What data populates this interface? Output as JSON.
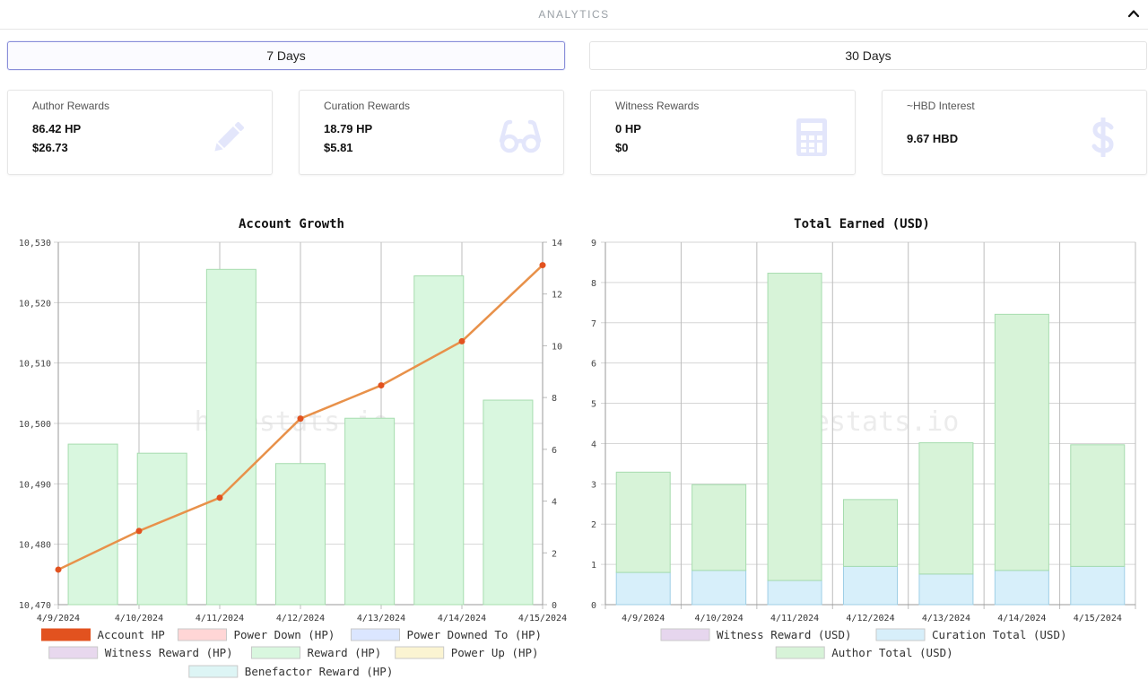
{
  "header": {
    "title": "ANALYTICS"
  },
  "periods": [
    {
      "label": "7 Days",
      "active": true
    },
    {
      "label": "30 Days",
      "active": false
    }
  ],
  "cards": [
    {
      "label": "Author Rewards",
      "value1": "86.42 HP",
      "value2": "$26.73",
      "icon": "pencil-icon"
    },
    {
      "label": "Curation Rewards",
      "value1": "18.79 HP",
      "value2": "$5.81",
      "icon": "glasses-icon"
    },
    {
      "label": "Witness Rewards",
      "value1": "0 HP",
      "value2": "$0",
      "icon": "calculator-icon"
    },
    {
      "label": "~HBD Interest",
      "value1": "9.67 HBD",
      "value2": "",
      "icon": "dollar-icon"
    }
  ],
  "colors": {
    "accent": "#8a8fd9",
    "icon": "#e3e6fb",
    "line": "#e8914a",
    "point": "#e2521f"
  },
  "chart_data": [
    {
      "type": "bar",
      "title": "Account Growth",
      "categories": [
        "4/9/2024",
        "4/10/2024",
        "4/11/2024",
        "4/12/2024",
        "4/13/2024",
        "4/14/2024",
        "4/15/2024"
      ],
      "y_left": {
        "min": 10470,
        "max": 10530,
        "ticks": [
          "10,470",
          "10,480",
          "10,490",
          "10,500",
          "10,510",
          "10,520",
          "10,530"
        ]
      },
      "y_right": {
        "min": 0,
        "max": 14,
        "ticks": [
          "0",
          "2",
          "4",
          "6",
          "8",
          "10",
          "12",
          "14"
        ]
      },
      "series": [
        {
          "name": "Account HP",
          "type": "line",
          "axis": "left",
          "color": "#e2521f",
          "values": [
            10475.8,
            10482.2,
            10487.7,
            10500.8,
            10506.3,
            10513.6,
            10526.2
          ]
        },
        {
          "name": "Power Down (HP)",
          "color": "#ffd6d6",
          "values": [
            0,
            0,
            0,
            0,
            0,
            0,
            0
          ]
        },
        {
          "name": "Power Downed To (HP)",
          "color": "#dbe6ff",
          "values": [
            0,
            0,
            0,
            0,
            0,
            0,
            0
          ]
        },
        {
          "name": "Witness Reward (HP)",
          "color": "#e8d8ee",
          "values": [
            0,
            0,
            0,
            0,
            0,
            0,
            0
          ]
        },
        {
          "name": "Reward (HP)",
          "type": "bar",
          "axis": "right",
          "color": "#d9f7df",
          "values": [
            6.2,
            5.85,
            12.95,
            5.45,
            7.2,
            12.7,
            7.9
          ]
        },
        {
          "name": "Power Up (HP)",
          "color": "#fbf4d2",
          "values": [
            0,
            0,
            0,
            0,
            0,
            0,
            0
          ]
        },
        {
          "name": "Benefactor Reward (HP)",
          "color": "#ddf5f5",
          "values": [
            0,
            0,
            0,
            0,
            0,
            0,
            0
          ]
        }
      ],
      "watermark": "hivestats.io"
    },
    {
      "type": "bar",
      "stacked": true,
      "title": "Total Earned (USD)",
      "categories": [
        "4/9/2024",
        "4/10/2024",
        "4/11/2024",
        "4/12/2024",
        "4/13/2024",
        "4/14/2024",
        "4/15/2024"
      ],
      "y": {
        "min": 0,
        "max": 9,
        "ticks": [
          "0",
          "1",
          "2",
          "3",
          "4",
          "5",
          "6",
          "7",
          "8",
          "9"
        ]
      },
      "series": [
        {
          "name": "Witness Reward (USD)",
          "color": "#e6d6ee",
          "values": [
            0,
            0,
            0,
            0,
            0,
            0,
            0
          ]
        },
        {
          "name": "Curation Total (USD)",
          "color": "#d7effa",
          "values": [
            0.8,
            0.85,
            0.6,
            0.95,
            0.76,
            0.85,
            0.95
          ]
        },
        {
          "name": "Author Total (USD)",
          "color": "#d7f3d8",
          "values": [
            2.49,
            2.13,
            7.63,
            1.66,
            3.26,
            6.36,
            3.02
          ]
        }
      ],
      "watermark": "hivestats.io"
    }
  ]
}
